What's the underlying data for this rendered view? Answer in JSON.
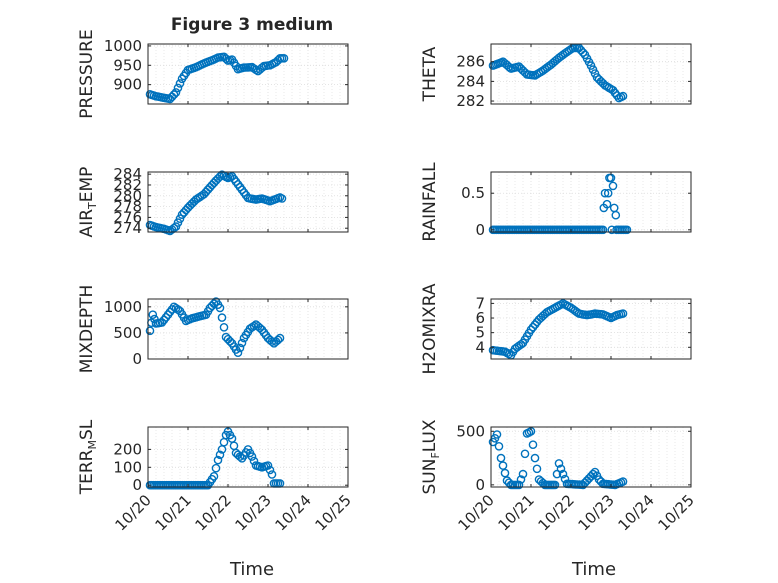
{
  "figure": {
    "title": "Figure 3 medium",
    "xlabel": "Time"
  },
  "colors": {
    "marker": "#0072bd",
    "axis": "#262626",
    "grid": "#dcdcdc",
    "background": "#ffffff"
  },
  "chart_data": [
    {
      "type": "scatter",
      "name": "PRESSURE",
      "ylabel_parts": [
        {
          "t": "PRESSURE",
          "sub": false
        }
      ],
      "xlim": [
        0,
        5
      ],
      "ylim": [
        850,
        1005
      ],
      "yticks": [
        900,
        950,
        1000
      ],
      "yticklabels": [
        "900",
        "950",
        "1000"
      ],
      "keys": [
        [
          0.05,
          875
        ],
        [
          0.2,
          870
        ],
        [
          0.4,
          866
        ],
        [
          0.55,
          863
        ],
        [
          0.7,
          880
        ],
        [
          0.85,
          915
        ],
        [
          1.0,
          938
        ],
        [
          1.2,
          945
        ],
        [
          1.4,
          955
        ],
        [
          1.6,
          963
        ],
        [
          1.75,
          970
        ],
        [
          1.9,
          972
        ],
        [
          2.0,
          962
        ],
        [
          2.1,
          965
        ],
        [
          2.25,
          940
        ],
        [
          2.4,
          944
        ],
        [
          2.6,
          945
        ],
        [
          2.75,
          935
        ],
        [
          2.9,
          948
        ],
        [
          3.05,
          950
        ],
        [
          3.2,
          958
        ],
        [
          3.3,
          968
        ],
        [
          3.4,
          968
        ]
      ]
    },
    {
      "type": "scatter",
      "name": "THETA",
      "ylabel_parts": [
        {
          "t": "THETA",
          "sub": false
        }
      ],
      "xlim": [
        0,
        5
      ],
      "ylim": [
        281.7,
        287.8
      ],
      "yticks": [
        282,
        284,
        286
      ],
      "yticklabels": [
        "282",
        "284",
        "286"
      ],
      "keys": [
        [
          0.05,
          285.6
        ],
        [
          0.3,
          286.0
        ],
        [
          0.5,
          285.3
        ],
        [
          0.7,
          285.5
        ],
        [
          0.9,
          284.7
        ],
        [
          1.1,
          284.6
        ],
        [
          1.3,
          285.1
        ],
        [
          1.5,
          285.7
        ],
        [
          1.7,
          286.4
        ],
        [
          1.9,
          287.0
        ],
        [
          2.05,
          287.4
        ],
        [
          2.2,
          287.4
        ],
        [
          2.35,
          286.7
        ],
        [
          2.5,
          285.6
        ],
        [
          2.65,
          284.4
        ],
        [
          2.85,
          283.6
        ],
        [
          3.05,
          283.1
        ],
        [
          3.2,
          282.3
        ],
        [
          3.3,
          282.5
        ]
      ]
    },
    {
      "type": "scatter",
      "name": "AIR_TEMP",
      "ylabel_parts": [
        {
          "t": "AIR",
          "sub": false
        },
        {
          "t": "T",
          "sub": true
        },
        {
          "t": "EMP",
          "sub": false
        }
      ],
      "xlim": [
        0,
        5
      ],
      "ylim": [
        273.3,
        284.4
      ],
      "yticks": [
        274,
        276,
        278,
        280,
        282,
        284
      ],
      "yticklabels": [
        "274",
        "276",
        "278",
        "280",
        "282",
        "284"
      ],
      "keys": [
        [
          0.05,
          274.6
        ],
        [
          0.2,
          274.2
        ],
        [
          0.4,
          273.9
        ],
        [
          0.55,
          273.5
        ],
        [
          0.7,
          274.3
        ],
        [
          0.85,
          276.5
        ],
        [
          1.0,
          277.8
        ],
        [
          1.2,
          279.3
        ],
        [
          1.4,
          280.3
        ],
        [
          1.6,
          282.0
        ],
        [
          1.75,
          283.2
        ],
        [
          1.85,
          283.9
        ],
        [
          2.0,
          283.3
        ],
        [
          2.1,
          283.6
        ],
        [
          2.3,
          281.6
        ],
        [
          2.5,
          279.6
        ],
        [
          2.7,
          279.3
        ],
        [
          2.85,
          279.5
        ],
        [
          3.05,
          279.0
        ],
        [
          3.2,
          279.4
        ],
        [
          3.3,
          279.7
        ],
        [
          3.35,
          279.5
        ]
      ]
    },
    {
      "type": "scatter",
      "name": "RAINFALL",
      "ylabel_parts": [
        {
          "t": "RAINFALL",
          "sub": false
        }
      ],
      "xlim": [
        0,
        5
      ],
      "ylim": [
        -0.03,
        0.79
      ],
      "yticks": [
        0,
        0.5
      ],
      "yticklabels": [
        "0",
        "0.5"
      ],
      "keys": [
        [
          0.05,
          0
        ],
        [
          2.8,
          0
        ],
        [
          2.82,
          0.3
        ],
        [
          2.85,
          0.5
        ],
        [
          2.9,
          0.35
        ],
        [
          2.93,
          0.5
        ],
        [
          2.96,
          0.71
        ],
        [
          3.0,
          0.71
        ],
        [
          3.02,
          0
        ],
        [
          3.05,
          0.6
        ],
        [
          3.08,
          0.3
        ],
        [
          3.12,
          0.2
        ],
        [
          3.14,
          0
        ],
        [
          3.4,
          0
        ]
      ]
    },
    {
      "type": "scatter",
      "name": "MIXDEPTH",
      "ylabel_parts": [
        {
          "t": "MIXDEPTH",
          "sub": false
        }
      ],
      "xlim": [
        0,
        5
      ],
      "ylim": [
        0,
        1150
      ],
      "yticks": [
        0,
        500,
        1000
      ],
      "yticklabels": [
        "0",
        "500",
        "1000"
      ],
      "keys": [
        [
          0.05,
          540
        ],
        [
          0.12,
          850
        ],
        [
          0.2,
          680
        ],
        [
          0.35,
          700
        ],
        [
          0.5,
          850
        ],
        [
          0.65,
          1000
        ],
        [
          0.8,
          920
        ],
        [
          0.95,
          730
        ],
        [
          1.1,
          780
        ],
        [
          1.3,
          820
        ],
        [
          1.45,
          850
        ],
        [
          1.55,
          980
        ],
        [
          1.7,
          1100
        ],
        [
          1.8,
          980
        ],
        [
          1.95,
          420
        ],
        [
          2.1,
          300
        ],
        [
          2.25,
          120
        ],
        [
          2.4,
          400
        ],
        [
          2.55,
          580
        ],
        [
          2.7,
          660
        ],
        [
          2.85,
          560
        ],
        [
          3.0,
          400
        ],
        [
          3.15,
          300
        ],
        [
          3.3,
          400
        ]
      ]
    },
    {
      "type": "scatter",
      "name": "H2OMIXRA",
      "ylabel_parts": [
        {
          "t": "H2OMIXRA",
          "sub": false
        }
      ],
      "xlim": [
        0,
        5
      ],
      "ylim": [
        3.2,
        7.3
      ],
      "yticks": [
        4,
        5,
        6,
        7
      ],
      "yticklabels": [
        "4",
        "5",
        "6",
        "7"
      ],
      "keys": [
        [
          0.05,
          3.8
        ],
        [
          0.2,
          3.75
        ],
        [
          0.35,
          3.7
        ],
        [
          0.5,
          3.45
        ],
        [
          0.6,
          3.9
        ],
        [
          0.8,
          4.3
        ],
        [
          1.0,
          5.2
        ],
        [
          1.2,
          5.9
        ],
        [
          1.4,
          6.4
        ],
        [
          1.6,
          6.7
        ],
        [
          1.8,
          7.0
        ],
        [
          2.0,
          6.7
        ],
        [
          2.2,
          6.3
        ],
        [
          2.4,
          6.2
        ],
        [
          2.6,
          6.3
        ],
        [
          2.8,
          6.25
        ],
        [
          3.0,
          6.0
        ],
        [
          3.15,
          6.2
        ],
        [
          3.3,
          6.3
        ]
      ]
    },
    {
      "type": "scatter",
      "name": "TERR_MSL",
      "ylabel_parts": [
        {
          "t": "TERR",
          "sub": false
        },
        {
          "t": "M",
          "sub": true
        },
        {
          "t": "SL",
          "sub": false
        }
      ],
      "xlim": [
        0,
        5
      ],
      "ylim": [
        -10,
        325
      ],
      "yticks": [
        0,
        100,
        200
      ],
      "yticklabels": [
        "0",
        "100",
        "200"
      ],
      "keys": [
        [
          0.05,
          0
        ],
        [
          1.5,
          0
        ],
        [
          1.65,
          50
        ],
        [
          1.75,
          140
        ],
        [
          1.85,
          200
        ],
        [
          1.95,
          280
        ],
        [
          2.0,
          300
        ],
        [
          2.1,
          260
        ],
        [
          2.2,
          180
        ],
        [
          2.35,
          150
        ],
        [
          2.5,
          200
        ],
        [
          2.6,
          160
        ],
        [
          2.7,
          110
        ],
        [
          2.85,
          100
        ],
        [
          3.0,
          110
        ],
        [
          3.1,
          60
        ],
        [
          3.15,
          10
        ],
        [
          3.3,
          10
        ]
      ]
    },
    {
      "type": "scatter",
      "name": "SUN_FLUX",
      "ylabel_parts": [
        {
          "t": "SUN",
          "sub": false
        },
        {
          "t": "F",
          "sub": true
        },
        {
          "t": "LUX",
          "sub": false
        }
      ],
      "xlim": [
        0,
        5
      ],
      "ylim": [
        -20,
        540
      ],
      "yticks": [
        0,
        500
      ],
      "yticklabels": [
        "0",
        "500"
      ],
      "keys": [
        [
          0.05,
          400
        ],
        [
          0.15,
          470
        ],
        [
          0.25,
          250
        ],
        [
          0.4,
          40
        ],
        [
          0.5,
          0
        ],
        [
          0.7,
          0
        ],
        [
          0.8,
          100
        ],
        [
          0.9,
          480
        ],
        [
          1.0,
          500
        ],
        [
          1.1,
          250
        ],
        [
          1.2,
          50
        ],
        [
          1.35,
          0
        ],
        [
          1.6,
          0
        ],
        [
          1.7,
          200
        ],
        [
          1.8,
          100
        ],
        [
          1.9,
          10
        ],
        [
          2.3,
          0
        ],
        [
          2.5,
          80
        ],
        [
          2.6,
          120
        ],
        [
          2.7,
          50
        ],
        [
          2.8,
          10
        ],
        [
          3.1,
          0
        ],
        [
          3.3,
          30
        ]
      ]
    }
  ],
  "x_axis": {
    "ticks": [
      0,
      1,
      2,
      3,
      4,
      5
    ],
    "ticklabels": [
      "10/20",
      "10/21",
      "10/22",
      "10/23",
      "10/24",
      "10/25"
    ]
  }
}
